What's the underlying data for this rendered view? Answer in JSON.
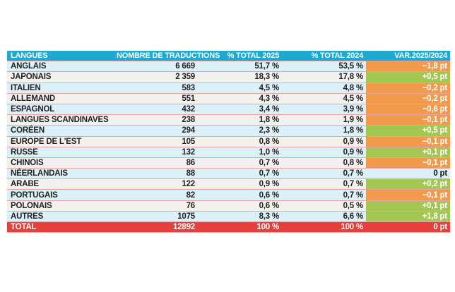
{
  "table": {
    "headers": [
      "LANGUES",
      "NOMBRE DE TRADUCTIONS",
      "% TOTAL 2025",
      "% TOTAL 2024",
      "VAR.2025/2024"
    ],
    "rows": [
      {
        "langue": "ANGLAIS",
        "nombre": "6 669",
        "p2025": "51,7 %",
        "p2024": "53,5 %",
        "var": "−1,8 pt",
        "trend": "neg"
      },
      {
        "langue": "JAPONAIS",
        "nombre": "2 359",
        "p2025": "18,3 %",
        "p2024": "17,8 %",
        "var": "+0,5 pt",
        "trend": "pos"
      },
      {
        "langue": "ITALIEN",
        "nombre": "583",
        "p2025": "4,5 %",
        "p2024": "4,8 %",
        "var": "−0,2 pt",
        "trend": "neg"
      },
      {
        "langue": "ALLEMAND",
        "nombre": "551",
        "p2025": "4,3 %",
        "p2024": "4,5 %",
        "var": "−0,2 pt",
        "trend": "neg"
      },
      {
        "langue": "ESPAGNOL",
        "nombre": "432",
        "p2025": "3,4 %",
        "p2024": "3,9 %",
        "var": "−0,6 pt",
        "trend": "neg"
      },
      {
        "langue": "LANGUES SCANDINAVES",
        "nombre": "238",
        "p2025": "1,8 %",
        "p2024": "1,9 %",
        "var": "−0,1 pt",
        "trend": "neg"
      },
      {
        "langue": "CORÉEN",
        "nombre": "294",
        "p2025": "2,3 %",
        "p2024": "1,8 %",
        "var": "+0,5 pt",
        "trend": "pos"
      },
      {
        "langue": "EUROPE DE L'EST",
        "nombre": "105",
        "p2025": "0,8 %",
        "p2024": "0,9 %",
        "var": "−0,1 pt",
        "trend": "neg"
      },
      {
        "langue": "RUSSE",
        "nombre": "132",
        "p2025": "1,0 %",
        "p2024": "0,9 %",
        "var": "+0,1 pt",
        "trend": "pos"
      },
      {
        "langue": "CHINOIS",
        "nombre": "86",
        "p2025": "0,7 %",
        "p2024": "0,8 %",
        "var": "−0,1 pt",
        "trend": "neg"
      },
      {
        "langue": "NÉERLANDAIS",
        "nombre": "88",
        "p2025": "0,7 %",
        "p2024": "0,7 %",
        "var": "0 pt",
        "trend": "zero"
      },
      {
        "langue": "ARABE",
        "nombre": "122",
        "p2025": "0,9 %",
        "p2024": "0,7 %",
        "var": "+0,2 pt",
        "trend": "pos"
      },
      {
        "langue": "PORTUGAIS",
        "nombre": "82",
        "p2025": "0,6 %",
        "p2024": "0,7 %",
        "var": "−0,1 pt",
        "trend": "neg"
      },
      {
        "langue": "POLONAIS",
        "nombre": "76",
        "p2025": "0,6 %",
        "p2024": "0,5 %",
        "var": "+0,1 pt",
        "trend": "pos"
      },
      {
        "langue": "AUTRES",
        "nombre": "1075",
        "p2025": "8,3 %",
        "p2024": "6,6 %",
        "var": "+1,8 pt",
        "trend": "pos"
      }
    ],
    "total": {
      "langue": "TOTAL",
      "nombre": "12892",
      "p2025": "100 %",
      "p2024": "100 %",
      "var": "0 pt"
    }
  },
  "colors": {
    "header": "#1ea9d1",
    "negative": "#f29a4b",
    "positive": "#a4c652",
    "total": "#e3403e"
  }
}
